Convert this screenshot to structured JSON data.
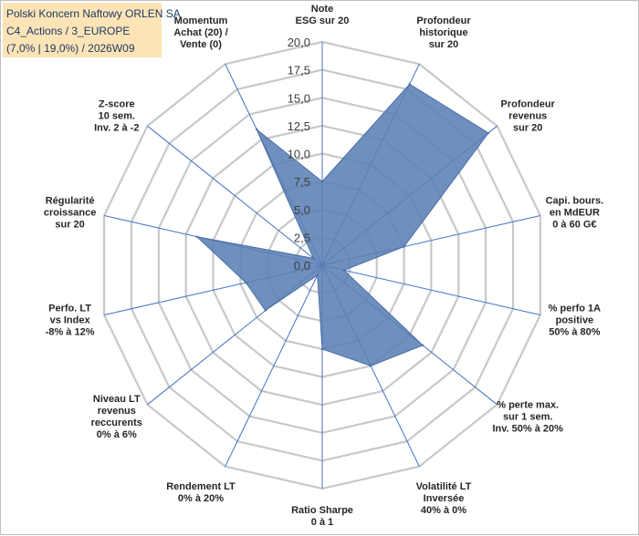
{
  "title": {
    "line1": "Polski Koncern Naftowy ORLEN SA",
    "line2": "C4_Actions / 3_EUROPE",
    "line3": "(7,0% | 19,0%) / 2026W09"
  },
  "chart_data": {
    "type": "radar",
    "rmin": 0,
    "rmax": 20,
    "tick_step": 2.5,
    "tick_labels": [
      "0,0",
      "2,5",
      "5,0",
      "7,5",
      "10,0",
      "12,5",
      "15,0",
      "17,5",
      "20,0"
    ],
    "colors": {
      "fill": "#5b7fb5",
      "stroke": "#4a6ea6",
      "grid": "#c8c8c8",
      "spoke": "#4472c4"
    },
    "axes": [
      {
        "lines": [
          "Note",
          "ESG sur 20"
        ]
      },
      {
        "lines": [
          "Profondeur",
          "historique",
          "sur 20"
        ]
      },
      {
        "lines": [
          "Profondeur",
          "revenus",
          "sur 20"
        ]
      },
      {
        "lines": [
          "Capi. bours.",
          "en MdEUR",
          "0 à 60 G€"
        ]
      },
      {
        "lines": [
          "% perfo 1A",
          "positive",
          "50% à 80%"
        ]
      },
      {
        "lines": [
          "% perte max.",
          "sur 1 sem.",
          "Inv. 50% à 20%"
        ]
      },
      {
        "lines": [
          "Volatilité LT",
          "Inversée",
          "40% à 0%"
        ]
      },
      {
        "lines": [
          "Ratio Sharpe",
          "0 à 1"
        ]
      },
      {
        "lines": [
          "Rendement LT",
          "0% à 20%"
        ]
      },
      {
        "lines": [
          "Niveau LT",
          "revenus",
          "reccurents",
          "0% à 6%"
        ]
      },
      {
        "lines": [
          "Perfo. LT",
          "vs Index",
          "-8% à 12%"
        ]
      },
      {
        "lines": [
          "Régularité",
          "croissance",
          "sur 20"
        ]
      },
      {
        "lines": [
          "Z-score",
          "10 sem.",
          "Inv. 2 à -2"
        ]
      },
      {
        "lines": [
          "Momentum",
          "Achat (20) /",
          "Vente (0)"
        ]
      }
    ],
    "series": [
      {
        "values": [
          7.5,
          18.0,
          19.0,
          7.5,
          2.0,
          11.5,
          10.0,
          7.5,
          1.0,
          6.5,
          7.0,
          11.5,
          1.0,
          13.5
        ]
      }
    ]
  }
}
